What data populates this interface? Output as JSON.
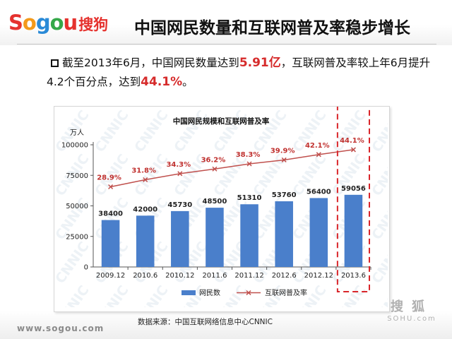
{
  "brand": {
    "logo_letters": [
      "S",
      "o",
      "g",
      "o",
      "u"
    ],
    "logo_cn": "搜狗",
    "url": "www.sogou.com"
  },
  "slide": {
    "title": "中国网民数量和互联网普及率稳步增长",
    "bullet": {
      "part1": "截至2013年6月，中国网民数量达到",
      "highlight1": "5.91亿",
      "part2": "，互联网普及率较上年6月提升4.2个百分点，达到",
      "highlight2": "44.1%",
      "part3": "。"
    },
    "source": "数据来源：中国互联网络信息中心CNNIC"
  },
  "sohu_logo": {
    "cn": "搜狐",
    "en": "SOHU.com"
  },
  "watermark_text": "CNNIC",
  "colors": {
    "bar": "#4a7fcb",
    "line": "#c0504d",
    "label_red": "#c0312f",
    "highlight_box": "#d9252a",
    "text_highlight": "#d62b2b"
  },
  "chart_data": {
    "type": "bar",
    "title": "中国网民规模和互联网普及率",
    "ylabel": "万人",
    "categories": [
      "2009.12",
      "2010.6",
      "2010.12",
      "2011.6",
      "2011.12",
      "2012.6",
      "2012.12",
      "2013.6"
    ],
    "ylim": [
      0,
      100000
    ],
    "yticks": [
      "0",
      "25000",
      "50000",
      "75000",
      "100000"
    ],
    "series": [
      {
        "name": "网民数",
        "kind": "bar",
        "values": [
          38400,
          42000,
          45730,
          48500,
          51310,
          53760,
          56400,
          59056
        ],
        "labels": [
          "38400",
          "42000",
          "45730",
          "48500",
          "51310",
          "53760",
          "56400",
          "59056"
        ]
      },
      {
        "name": "互联网普及率",
        "kind": "line",
        "values": [
          28.9,
          31.8,
          34.3,
          36.2,
          38.3,
          39.9,
          42.1,
          44.1
        ],
        "labels": [
          "28.9%",
          "31.8%",
          "34.3%",
          "36.2%",
          "38.3%",
          "39.9%",
          "42.1%",
          "44.1%"
        ]
      }
    ],
    "highlighted_category": "2013.6",
    "legend_position": "bottom",
    "grid": false
  }
}
